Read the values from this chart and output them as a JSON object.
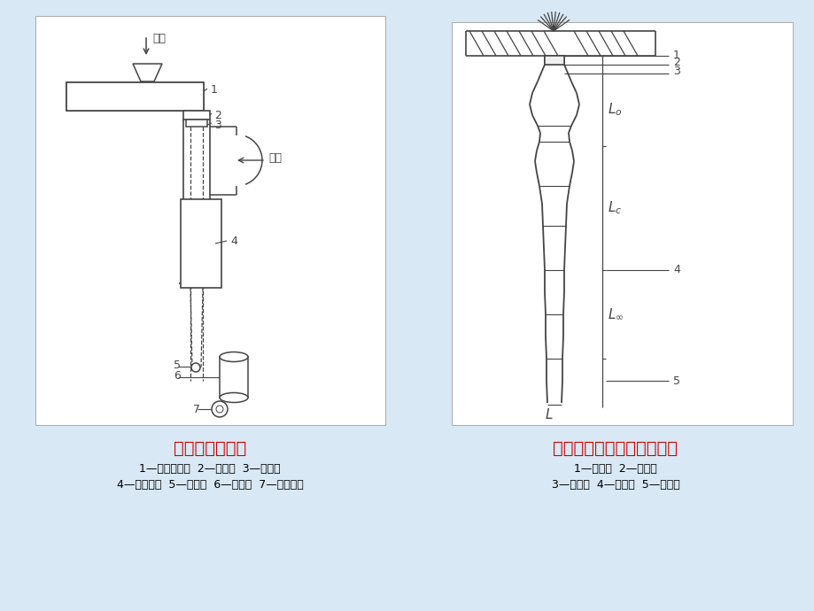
{
  "bg_color": "#d8e8f4",
  "title_left": "熔体纺丝示意图",
  "title_right": "熔体细流及固化成形示意图",
  "title_color": "#cc0000",
  "caption_left_1": "1—螺杆挤出机  2—喷丝板  3—吹风窗",
  "caption_left_2": "4—纺丝甬道  5—给油盘  6—导丝盘  7—卷绕装置",
  "caption_right_1": "1—入口区  2—孔流区",
  "caption_right_2": "3—膨化区  4—形变区  5—稳定区",
  "caption_color": "#000000",
  "lc": "#444444"
}
